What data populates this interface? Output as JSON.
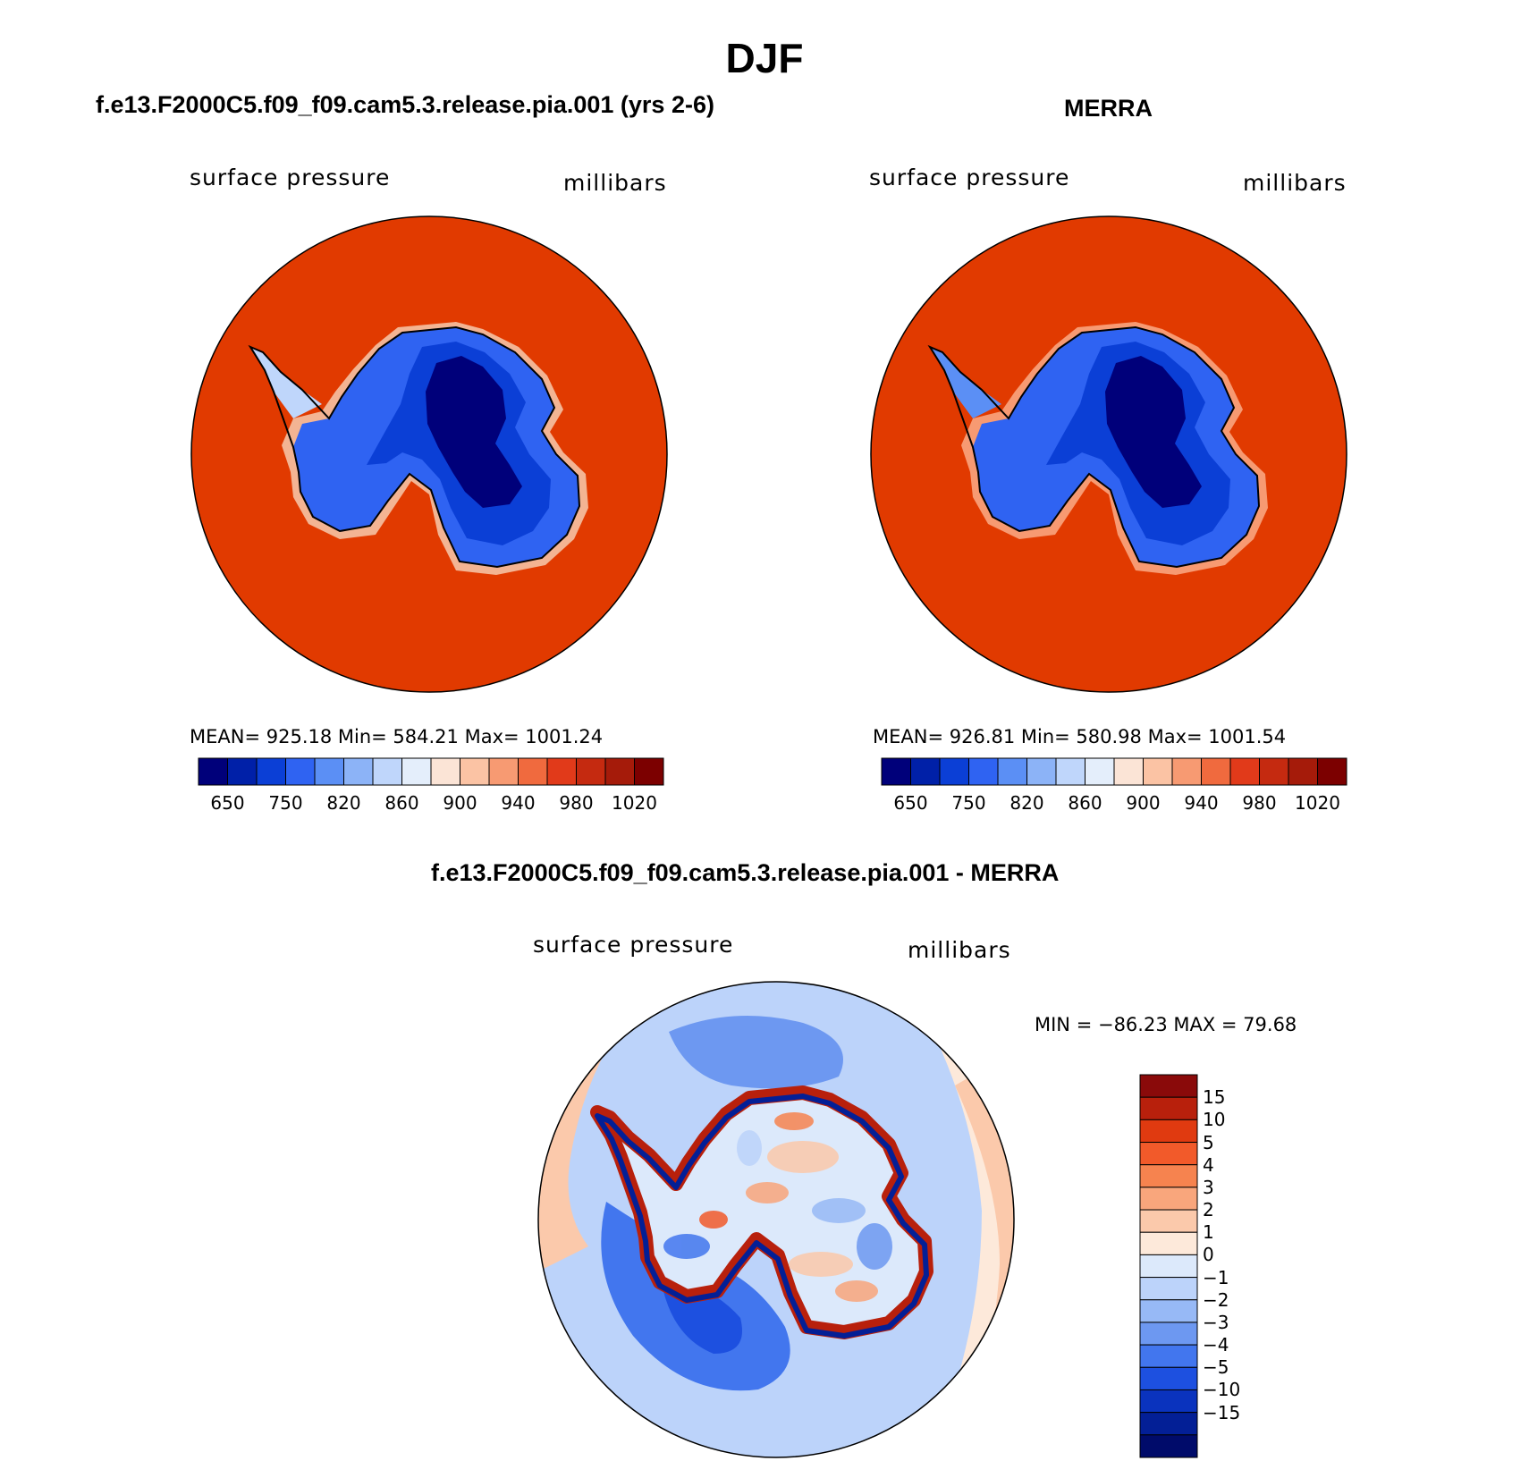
{
  "figure": {
    "title": "DJF"
  },
  "panels": [
    {
      "id": "model",
      "title": "f.e13.F2000C5.f09_f09.cam5.3.release.pia.001 (yrs 2-6)",
      "variable": "surface pressure",
      "units": "millibars",
      "stats": "MEAN= 925.18   Min= 584.21   Max= 1001.24"
    },
    {
      "id": "obs",
      "title": "MERRA",
      "variable": "surface pressure",
      "units": "millibars",
      "stats": "MEAN= 926.81   Min= 580.98   Max= 1001.54"
    }
  ],
  "difference": {
    "title": "f.e13.F2000C5.f09_f09.cam5.3.release.pia.001 - MERRA",
    "variable": "surface pressure",
    "units": "millibars",
    "stats": "MIN = −86.23 MAX =   79.68"
  },
  "chart_data": [
    {
      "type": "heatmap",
      "title": "f.e13.F2000C5.f09_f09.cam5.3.release.pia.001 (yrs 2-6)",
      "projection": "south polar stereographic",
      "variable": "surface pressure (millibars)",
      "mean": 925.18,
      "min": 584.21,
      "max": 1001.24,
      "colorbar_levels": [
        650,
        750,
        820,
        860,
        900,
        940,
        980,
        1020
      ],
      "colorbar_tick_labels": [
        "650",
        "750",
        "820",
        "860",
        "900",
        "940",
        "980",
        "1020"
      ],
      "colorbar_colors": [
        "#00007a",
        "#0020a8",
        "#0b3fd6",
        "#2f63f2",
        "#5b8ff5",
        "#8cb3f7",
        "#bfd6fb",
        "#e4eefb",
        "#fbe4d6",
        "#fbc3a4",
        "#f79a72",
        "#f06a3e",
        "#e13a1a",
        "#c52a10",
        "#a51b0a",
        "#7c0000"
      ],
      "land_color": "#e13a00"
    },
    {
      "type": "heatmap",
      "title": "MERRA",
      "projection": "south polar stereographic",
      "variable": "surface pressure (millibars)",
      "mean": 926.81,
      "min": 580.98,
      "max": 1001.54,
      "colorbar_levels": [
        650,
        750,
        820,
        860,
        900,
        940,
        980,
        1020
      ],
      "colorbar_tick_labels": [
        "650",
        "750",
        "820",
        "860",
        "900",
        "940",
        "980",
        "1020"
      ],
      "colorbar_colors": [
        "#00007a",
        "#0020a8",
        "#0b3fd6",
        "#2f63f2",
        "#5b8ff5",
        "#8cb3f7",
        "#bfd6fb",
        "#e4eefb",
        "#fbe4d6",
        "#fbc3a4",
        "#f79a72",
        "#f06a3e",
        "#e13a1a",
        "#c52a10",
        "#a51b0a",
        "#7c0000"
      ],
      "land_color": "#e13a00"
    },
    {
      "type": "heatmap",
      "title": "f.e13.F2000C5.f09_f09.cam5.3.release.pia.001 - MERRA",
      "projection": "south polar stereographic",
      "variable": "surface pressure difference (millibars)",
      "min": -86.23,
      "max": 79.68,
      "colorbar_tick_labels": [
        "15",
        "10",
        "5",
        "4",
        "3",
        "2",
        "1",
        "0",
        "−1",
        "−2",
        "−3",
        "−4",
        "−5",
        "−10",
        "−15"
      ],
      "colorbar_colors": [
        "#8a0a0a",
        "#b8200c",
        "#e03a10",
        "#f25a2a",
        "#f6834f",
        "#f9a67c",
        "#fbc9ab",
        "#fde9da",
        "#dce9fb",
        "#bcd3fa",
        "#97b9f6",
        "#6d98f1",
        "#4276ee",
        "#1d50e0",
        "#0a33be",
        "#031f96",
        "#000b6a"
      ]
    }
  ]
}
